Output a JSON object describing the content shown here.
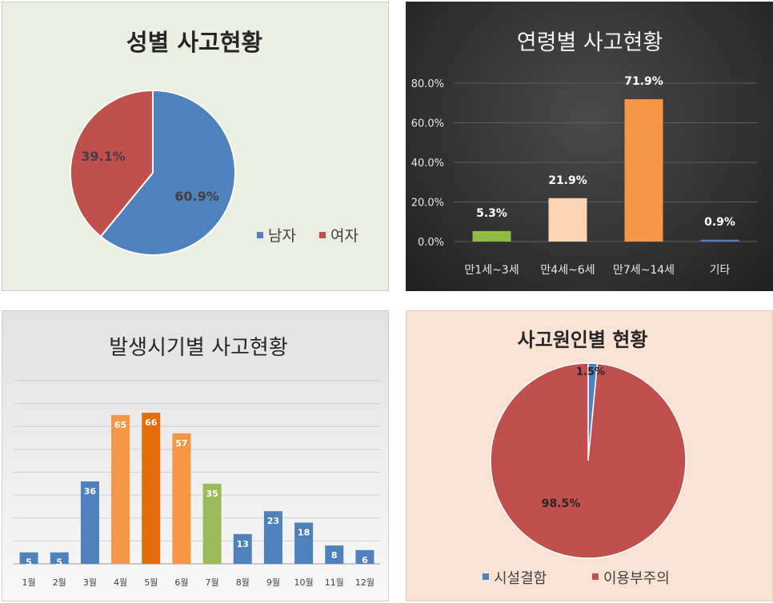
{
  "chart_data": [
    {
      "type": "pie",
      "title": "성별 사고현황",
      "labels": [
        "남자",
        "여자"
      ],
      "values": [
        60.9,
        39.1
      ],
      "value_labels": [
        "60.9%",
        "39.1%"
      ],
      "colors": [
        "#4f81bd",
        "#c0504d"
      ],
      "legend": "bottom-right"
    },
    {
      "type": "bar",
      "title": "연령별 사고현황",
      "categories": [
        "만1세~3세",
        "만4세~6세",
        "만7세~14세",
        "기타"
      ],
      "values": [
        5.3,
        21.9,
        71.9,
        0.9
      ],
      "value_labels": [
        "5.3%",
        "21.9%",
        "71.9%",
        "0.9%"
      ],
      "colors": [
        "#8fbc45",
        "#fcd5b5",
        "#f79646",
        "#4f81bd"
      ],
      "ylim": [
        0,
        80
      ],
      "yticks": [
        "0.0%",
        "20.0%",
        "40.0%",
        "60.0%",
        "80.0%"
      ],
      "grid": true
    },
    {
      "type": "bar",
      "title": "발생시기별 사고현황",
      "categories": [
        "1월",
        "2월",
        "3월",
        "4월",
        "5월",
        "6월",
        "7월",
        "8월",
        "9월",
        "10월",
        "11월",
        "12월"
      ],
      "values": [
        5,
        5,
        36,
        65,
        66,
        57,
        35,
        13,
        23,
        18,
        8,
        6
      ],
      "colors": [
        "#4f81bd",
        "#4f81bd",
        "#4f81bd",
        "#f79646",
        "#e46c0a",
        "#f79646",
        "#9bbb59",
        "#4f81bd",
        "#4f81bd",
        "#4f81bd",
        "#4f81bd",
        "#4f81bd"
      ],
      "ylim": [
        0,
        80
      ],
      "grid": true
    },
    {
      "type": "pie",
      "title": "사고원인별 현황",
      "labels": [
        "시설결함",
        "이용부주의"
      ],
      "values": [
        1.5,
        98.5
      ],
      "value_labels": [
        "1.5%",
        "98.5%"
      ],
      "colors": [
        "#4f81bd",
        "#c0504d"
      ],
      "legend": "bottom"
    }
  ]
}
